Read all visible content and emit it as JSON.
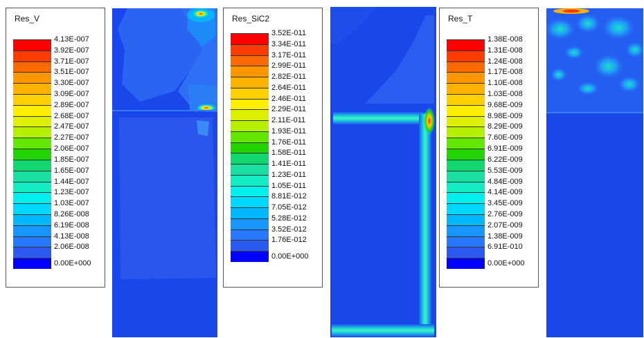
{
  "colors": [
    "#ff0000",
    "#ff3c00",
    "#ff6a00",
    "#ff9600",
    "#ffb300",
    "#ffd000",
    "#ffee00",
    "#dcf000",
    "#b4f000",
    "#63e600",
    "#22d400",
    "#12d66e",
    "#19e0a0",
    "#14ecc4",
    "#00f0f0",
    "#00d8ff",
    "#00b8ff",
    "#1896ff",
    "#2878ff",
    "#2c5af0",
    "#0000ff"
  ],
  "panels": [
    {
      "title": "Res_V",
      "labels": [
        "4.13E-007",
        "3.92E-007",
        "3.71E-007",
        "3.51E-007",
        "3.30E-007",
        "3.09E-007",
        "2.89E-007",
        "2.68E-007",
        "2.47E-007",
        "2.27E-007",
        "2.06E-007",
        "1.85E-007",
        "1.65E-007",
        "1.44E-007",
        "1.23E-007",
        "1.03E-007",
        "8.26E-008",
        "6.19E-008",
        "4.13E-008",
        "2.06E-008",
        "0.00E+000"
      ]
    },
    {
      "title": "Res_SiC2",
      "labels": [
        "3.52E-011",
        "3.34E-011",
        "3.17E-011",
        "2.99E-011",
        "2.82E-011",
        "2.64E-011",
        "2.46E-011",
        "2.29E-011",
        "2.11E-011",
        "1.93E-011",
        "1.76E-011",
        "1.58E-011",
        "1.41E-011",
        "1.23E-011",
        "1.05E-011",
        "8.81E-012",
        "7.05E-012",
        "5.28E-012",
        "3.52E-012",
        "1.76E-012",
        "0.00E+000"
      ]
    },
    {
      "title": "Res_T",
      "labels": [
        "1.38E-008",
        "1.31E-008",
        "1.24E-008",
        "1.17E-008",
        "1.10E-008",
        "1.03E-008",
        "9.68E-009",
        "8.98E-009",
        "8.29E-009",
        "7.60E-009",
        "6.91E-009",
        "6.22E-009",
        "5.53E-009",
        "4.84E-009",
        "4.14E-009",
        "3.45E-009",
        "2.76E-009",
        "2.07E-009",
        "1.38E-009",
        "6.91E-010",
        "0.00E+000"
      ]
    }
  ]
}
